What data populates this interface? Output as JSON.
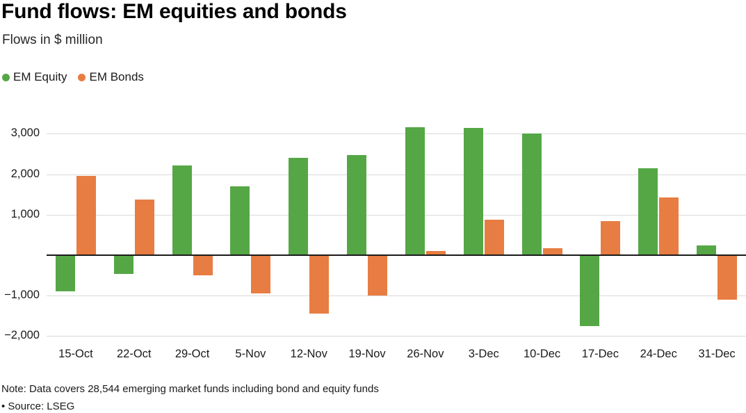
{
  "header": {
    "title": "Fund flows: EM equities and bonds",
    "subtitle": "Flows in $ million"
  },
  "legend": {
    "items": [
      {
        "label": "EM Equity",
        "color": "#55a746"
      },
      {
        "label": "EM Bonds",
        "color": "#e77d42"
      }
    ]
  },
  "chart_data": {
    "type": "bar",
    "title": "Fund flows: EM equities and bonds",
    "subtitle": "Flows in $ million",
    "ylabel": "Flows in $ million",
    "categories": [
      "15-Oct",
      "22-Oct",
      "29-Oct",
      "5-Nov",
      "12-Nov",
      "19-Nov",
      "26-Nov",
      "3-Dec",
      "10-Dec",
      "17-Dec",
      "24-Dec",
      "31-Dec"
    ],
    "series": [
      {
        "name": "EM Equity",
        "color": "#55a746",
        "values": [
          -900,
          -460,
          2220,
          1700,
          2400,
          2470,
          3160,
          3140,
          3000,
          -1750,
          2150,
          240
        ]
      },
      {
        "name": "EM Bonds",
        "color": "#e77d42",
        "values": [
          1950,
          1380,
          -500,
          -950,
          -1450,
          -1000,
          100,
          880,
          170,
          840,
          1420,
          -1100
        ]
      }
    ],
    "y_ticks": [
      {
        "value": 3000,
        "label": "3,000"
      },
      {
        "value": 2000,
        "label": "2,000"
      },
      {
        "value": 1000,
        "label": "1,000"
      },
      {
        "value": -1000,
        "label": "−1,000"
      },
      {
        "value": -2000,
        "label": "−2,000"
      }
    ],
    "ylim": [
      -2200,
      3470
    ],
    "grid": true,
    "zero_line": true,
    "legend_position": "top-left"
  },
  "footer": {
    "note": "Note: Data covers 28,544 emerging market funds including bond and equity funds",
    "source": "• Source: LSEG"
  }
}
